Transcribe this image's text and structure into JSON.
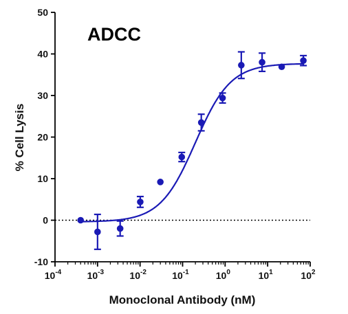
{
  "chart_data": {
    "type": "scatter",
    "title": "ADCC",
    "xlabel": "Monoclonal Antibody (nM)",
    "ylabel": "% Cell Lysis",
    "x_scale": "log",
    "xlim": [
      0.0001,
      100
    ],
    "ylim": [
      -10,
      50
    ],
    "x_ticks": [
      {
        "value": 0.0001,
        "base": "10",
        "exp": "-4"
      },
      {
        "value": 0.001,
        "base": "10",
        "exp": "-3"
      },
      {
        "value": 0.01,
        "base": "10",
        "exp": "-2"
      },
      {
        "value": 0.1,
        "base": "10",
        "exp": "-1"
      },
      {
        "value": 1,
        "base": "10",
        "exp": "0"
      },
      {
        "value": 10,
        "base": "10",
        "exp": "1"
      },
      {
        "value": 100,
        "base": "10",
        "exp": "2"
      }
    ],
    "y_ticks": [
      -10,
      0,
      10,
      20,
      30,
      40,
      50
    ],
    "grid": false,
    "reference_line": {
      "y": 0,
      "style": "dotted"
    },
    "color": "#1a1ab5",
    "series": [
      {
        "points": [
          {
            "x": 0.0004,
            "y": 0.0,
            "err": 0
          },
          {
            "x": 0.001,
            "y": -2.8,
            "err": 4.2
          },
          {
            "x": 0.0034,
            "y": -2.0,
            "err": 1.8
          },
          {
            "x": 0.0101,
            "y": 4.4,
            "err": 1.3
          },
          {
            "x": 0.03,
            "y": 9.2,
            "err": 0
          },
          {
            "x": 0.0955,
            "y": 15.2,
            "err": 1.1
          },
          {
            "x": 0.275,
            "y": 23.5,
            "err": 2.0
          },
          {
            "x": 0.87,
            "y": 29.4,
            "err": 1.2
          },
          {
            "x": 2.4,
            "y": 37.3,
            "err": 3.2
          },
          {
            "x": 7.4,
            "y": 38.0,
            "err": 2.2
          },
          {
            "x": 21.4,
            "y": 36.9,
            "err": 0
          },
          {
            "x": 69.2,
            "y": 38.4,
            "err": 1.2
          }
        ],
        "fit": {
          "type": "4PL",
          "bottom": -0.4,
          "top": 37.7,
          "log_ec50": -0.7,
          "hill": 1.05
        }
      }
    ]
  }
}
